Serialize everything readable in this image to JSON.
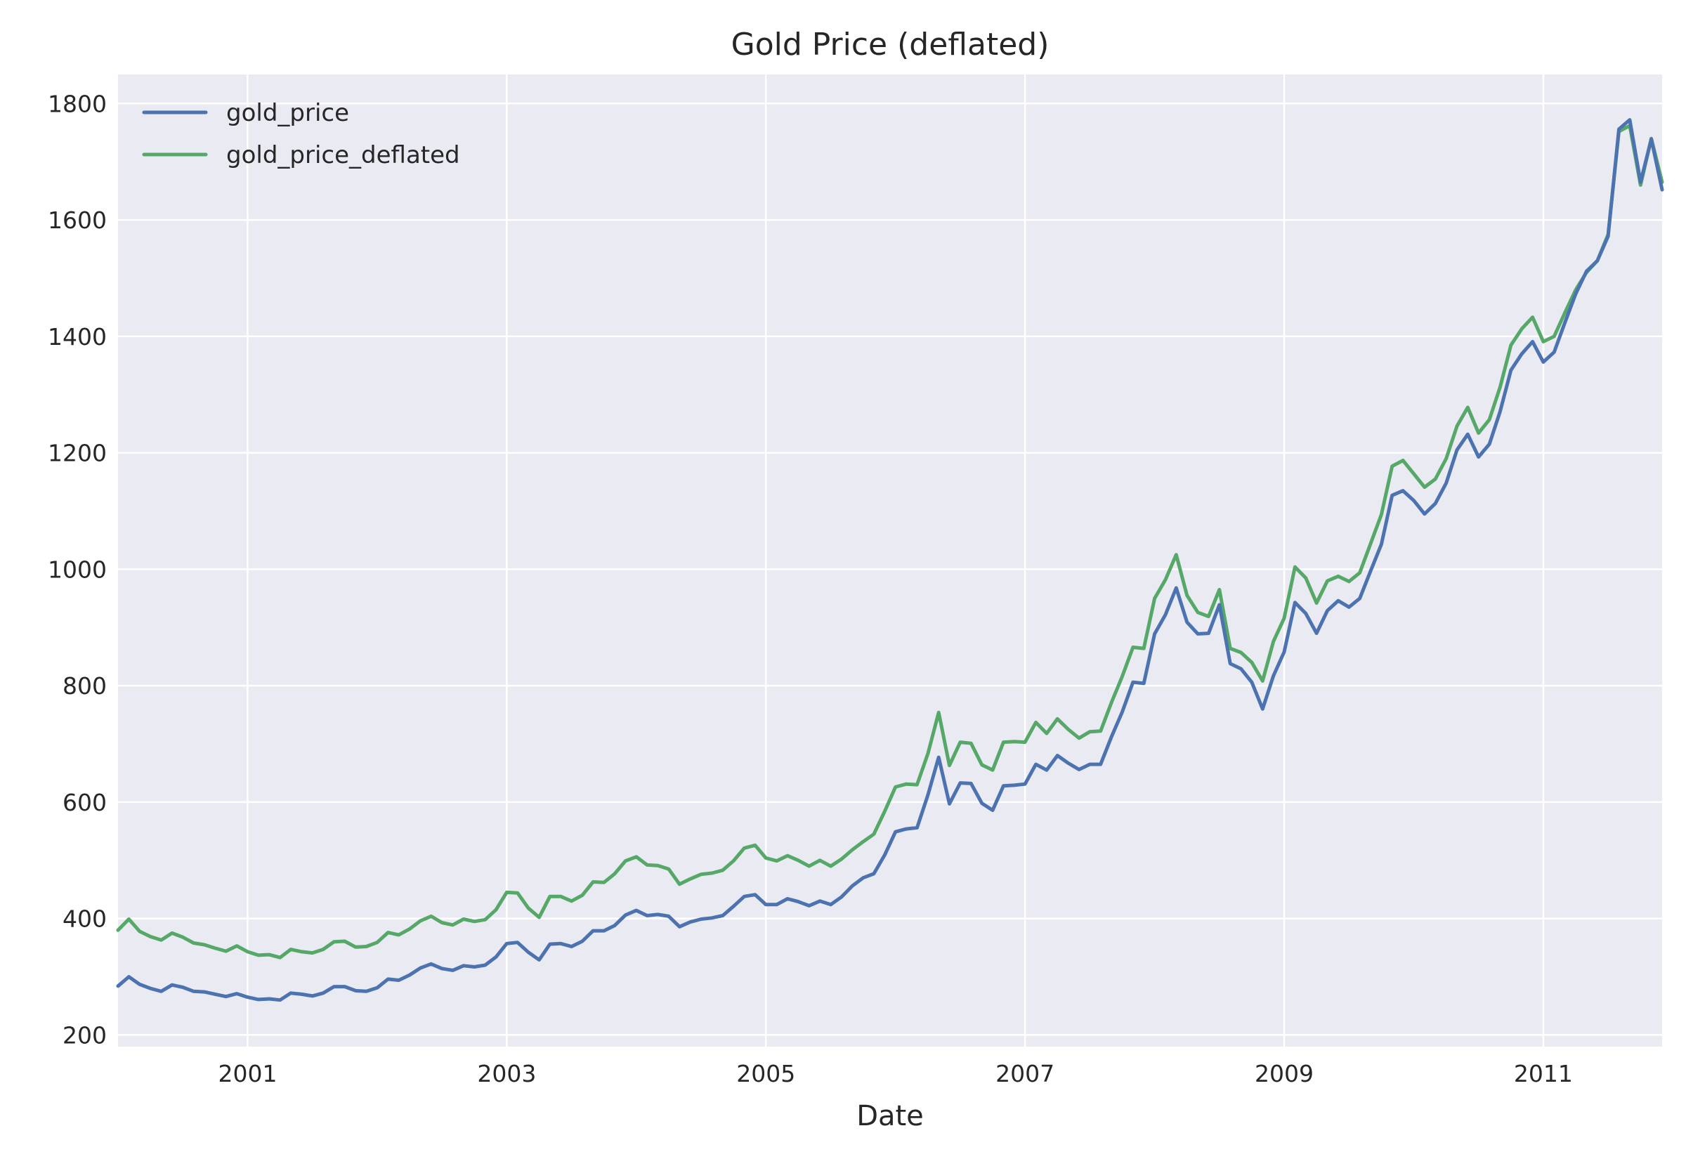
{
  "chart_data": {
    "type": "line",
    "title": "Gold Price (deflated)",
    "xlabel": "Date",
    "ylabel": "",
    "xlim": [
      "2000-01",
      "2011-12"
    ],
    "ylim": [
      180,
      1850
    ],
    "x_ticks": [
      {
        "date": "2001-01",
        "label": "2001"
      },
      {
        "date": "2003-01",
        "label": "2003"
      },
      {
        "date": "2005-01",
        "label": "2005"
      },
      {
        "date": "2007-01",
        "label": "2007"
      },
      {
        "date": "2009-01",
        "label": "2009"
      },
      {
        "date": "2011-01",
        "label": "2011"
      }
    ],
    "y_ticks": [
      200,
      400,
      600,
      800,
      1000,
      1200,
      1400,
      1600,
      1800
    ],
    "grid": true,
    "legend_position": "top-left",
    "start_month": "2000-01",
    "series": [
      {
        "name": "gold_price",
        "color": "#4C72B0",
        "values": [
          284,
          300,
          287,
          280,
          275,
          286,
          282,
          275,
          274,
          270,
          266,
          271,
          265,
          261,
          262,
          260,
          272,
          270,
          267,
          272,
          283,
          283,
          276,
          275,
          281,
          296,
          294,
          303,
          315,
          322,
          314,
          311,
          319,
          317,
          320,
          334,
          357,
          359,
          342,
          329,
          356,
          357,
          352,
          361,
          379,
          379,
          388,
          406,
          414,
          405,
          407,
          404,
          386,
          394,
          399,
          401,
          405,
          421,
          438,
          441,
          424,
          424,
          434,
          429,
          422,
          430,
          424,
          437,
          456,
          470,
          477,
          509,
          549,
          554,
          556,
          612,
          677,
          597,
          633,
          632,
          598,
          586,
          628,
          629,
          631,
          665,
          655,
          680,
          667,
          656,
          665,
          665,
          712,
          755,
          806,
          804,
          889,
          922,
          968,
          909,
          889,
          890,
          939,
          838,
          829,
          806,
          760,
          817,
          858,
          943,
          924,
          890,
          929,
          946,
          935,
          950,
          997,
          1043,
          1127,
          1135,
          1118,
          1095,
          1113,
          1148,
          1205,
          1232,
          1193,
          1215,
          1271,
          1342,
          1370,
          1391,
          1356,
          1373,
          1424,
          1473,
          1512,
          1530,
          1572,
          1756,
          1772,
          1665,
          1739,
          1652
        ]
      },
      {
        "name": "gold_price_deflated",
        "color": "#55A868",
        "values": [
          380,
          399,
          378,
          369,
          363,
          375,
          368,
          358,
          355,
          349,
          344,
          353,
          343,
          337,
          338,
          333,
          347,
          343,
          341,
          347,
          360,
          361,
          351,
          352,
          359,
          376,
          372,
          382,
          396,
          404,
          393,
          389,
          399,
          395,
          398,
          415,
          445,
          444,
          418,
          402,
          438,
          438,
          430,
          440,
          463,
          462,
          477,
          499,
          506,
          492,
          491,
          485,
          459,
          468,
          476,
          478,
          483,
          499,
          521,
          526,
          504,
          499,
          508,
          500,
          490,
          500,
          490,
          502,
          518,
          532,
          545,
          584,
          626,
          631,
          630,
          683,
          754,
          663,
          703,
          701,
          664,
          655,
          703,
          704,
          703,
          737,
          718,
          743,
          725,
          710,
          721,
          722,
          771,
          816,
          866,
          864,
          950,
          982,
          1025,
          955,
          926,
          919,
          965,
          864,
          857,
          840,
          808,
          876,
          916,
          1004,
          985,
          942,
          980,
          988,
          979,
          994,
          1044,
          1094,
          1177,
          1187,
          1164,
          1141,
          1155,
          1190,
          1246,
          1278,
          1234,
          1257,
          1313,
          1385,
          1413,
          1433,
          1391,
          1400,
          1441,
          1480,
          1510,
          1530,
          1575,
          1752,
          1762,
          1660,
          1740,
          1665
        ]
      }
    ]
  }
}
